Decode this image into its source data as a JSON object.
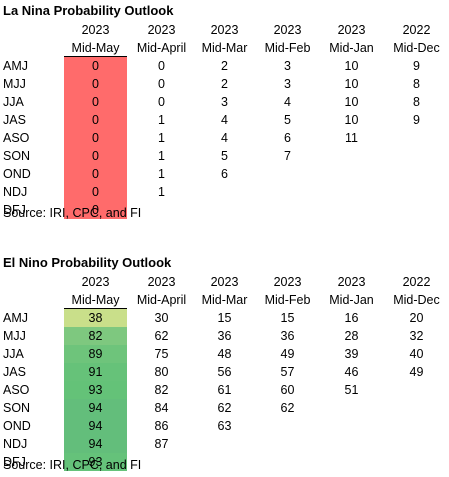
{
  "la_nina": {
    "title": "La Nina Probability Outlook",
    "header_years": [
      "2023",
      "2023",
      "2023",
      "2023",
      "2023",
      "2022"
    ],
    "header_labels": [
      "Mid-May",
      "Mid-April",
      "Mid-Mar",
      "Mid-Feb",
      "Mid-Jan",
      "Mid-Dec"
    ],
    "highlight_color": "#ff6b6b",
    "rows": [
      {
        "label": "AMJ",
        "values": [
          "0",
          "0",
          "2",
          "3",
          "10",
          "9"
        ]
      },
      {
        "label": "MJJ",
        "values": [
          "0",
          "0",
          "2",
          "3",
          "10",
          "8"
        ]
      },
      {
        "label": "JJA",
        "values": [
          "0",
          "0",
          "3",
          "4",
          "10",
          "8"
        ]
      },
      {
        "label": "JAS",
        "values": [
          "0",
          "1",
          "4",
          "5",
          "10",
          "9"
        ]
      },
      {
        "label": "ASO",
        "values": [
          "0",
          "1",
          "4",
          "6",
          "11",
          ""
        ]
      },
      {
        "label": "SON",
        "values": [
          "0",
          "1",
          "5",
          "7",
          "",
          ""
        ]
      },
      {
        "label": "OND",
        "values": [
          "0",
          "1",
          "6",
          "",
          "",
          ""
        ]
      },
      {
        "label": "NDJ",
        "values": [
          "0",
          "1",
          "",
          "",
          "",
          ""
        ]
      },
      {
        "label": "DFJ",
        "values": [
          "0",
          "",
          "",
          "",
          "",
          ""
        ]
      }
    ],
    "source": "Source: IRI, CPC, and FI"
  },
  "el_nino": {
    "title": "El Nino Probability Outlook",
    "header_years": [
      "2023",
      "2023",
      "2023",
      "2023",
      "2023",
      "2022"
    ],
    "header_labels": [
      "Mid-May",
      "Mid-April",
      "Mid-Mar",
      "Mid-Feb",
      "Mid-Jan",
      "Mid-Dec"
    ],
    "highlight_colors": [
      "#c9df8a",
      "#7ec87f",
      "#6ec47b",
      "#66c279",
      "#64c278",
      "#63be7b",
      "#63be7b",
      "#63be7b",
      "#65c27a"
    ],
    "rows": [
      {
        "label": "AMJ",
        "values": [
          "38",
          "30",
          "15",
          "15",
          "16",
          "20"
        ]
      },
      {
        "label": "MJJ",
        "values": [
          "82",
          "62",
          "36",
          "36",
          "28",
          "32"
        ]
      },
      {
        "label": "JJA",
        "values": [
          "89",
          "75",
          "48",
          "49",
          "39",
          "40"
        ]
      },
      {
        "label": "JAS",
        "values": [
          "91",
          "80",
          "56",
          "57",
          "46",
          "49"
        ]
      },
      {
        "label": "ASO",
        "values": [
          "93",
          "82",
          "61",
          "60",
          "51",
          ""
        ]
      },
      {
        "label": "SON",
        "values": [
          "94",
          "84",
          "62",
          "62",
          "",
          ""
        ]
      },
      {
        "label": "OND",
        "values": [
          "94",
          "86",
          "63",
          "",
          "",
          ""
        ]
      },
      {
        "label": "NDJ",
        "values": [
          "94",
          "87",
          "",
          "",
          "",
          ""
        ]
      },
      {
        "label": "DFJ",
        "values": [
          "93",
          "",
          "",
          "",
          "",
          ""
        ]
      }
    ],
    "source": "Source: IRI, CPC, and FI"
  }
}
